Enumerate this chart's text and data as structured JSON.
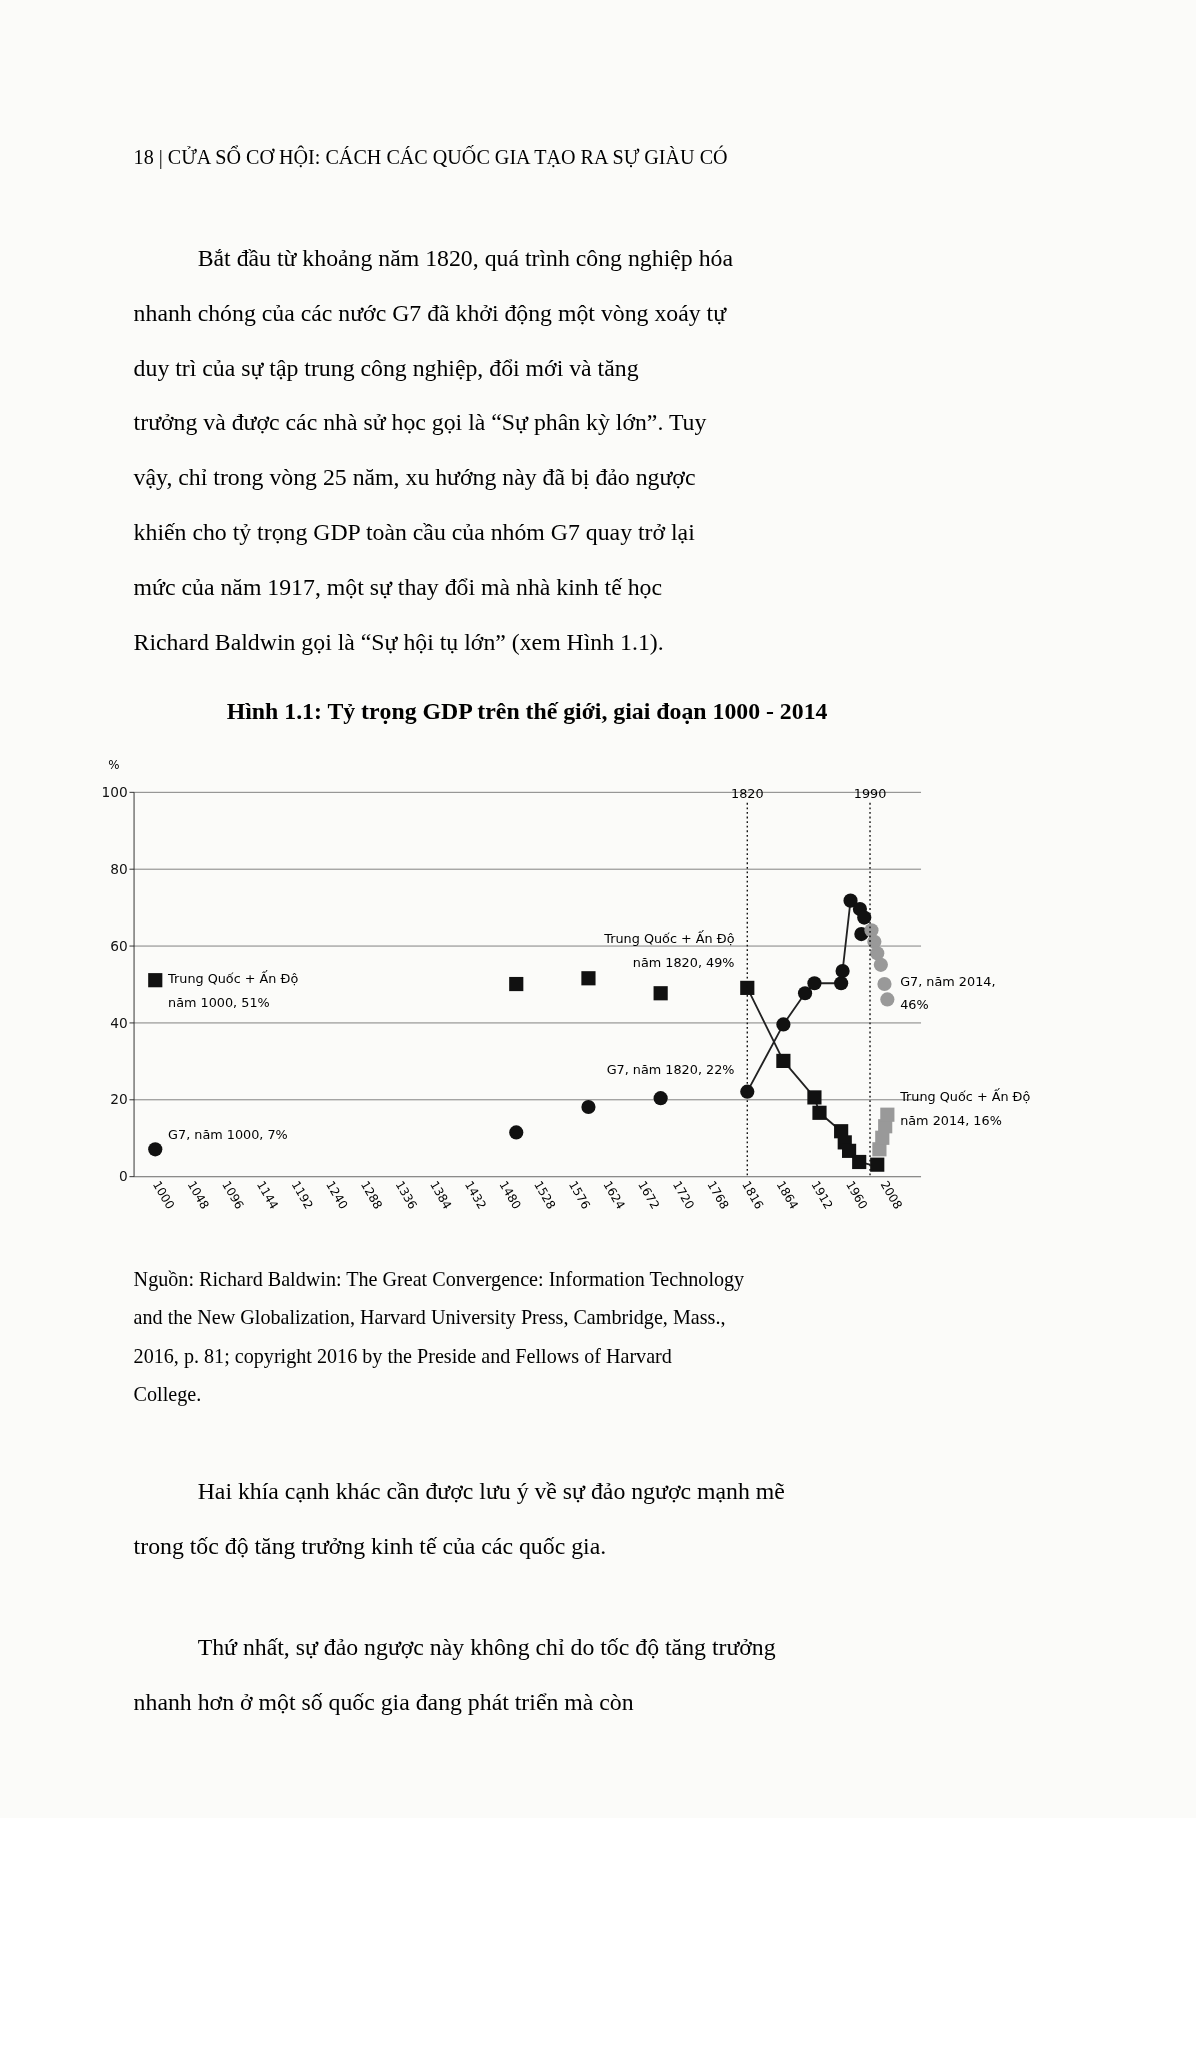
{
  "chart_data": {
    "type": "scatter",
    "title": "Hình 1.1: Tỷ trọng GDP trên thế giới, giai đoạn 1000 - 2014",
    "ylabel": "%",
    "xlim": [
      970,
      2060
    ],
    "ylim": [
      0,
      100
    ],
    "xticks": [
      1000,
      1048,
      1096,
      1144,
      1192,
      1240,
      1288,
      1336,
      1384,
      1432,
      1480,
      1528,
      1576,
      1624,
      1672,
      1720,
      1768,
      1816,
      1864,
      1912,
      1960,
      2008
    ],
    "yticks": [
      0,
      20,
      40,
      60,
      80,
      100
    ],
    "grid": "y",
    "series": [
      {
        "type": "line",
        "color": "#222222",
        "line_style": "solid",
        "marker": "none",
        "x": [
          1820,
          1870,
          1913,
          1920,
          1950,
          1961,
          1975,
          1990
        ],
        "values": [
          49,
          30,
          20.5,
          16.5,
          11.7,
          6.6,
          3.7,
          3
        ]
      },
      {
        "type": "line",
        "color": "#222222",
        "line_style": "solid",
        "marker": "none",
        "x": [
          1820,
          1870,
          1900,
          1913,
          1950,
          1952,
          1963,
          1976,
          1982
        ],
        "values": [
          22,
          39.5,
          47.6,
          50.2,
          50.2,
          53.4,
          71.7,
          69.5,
          67.3
        ]
      },
      {
        "type": "scatter",
        "color": "#111111",
        "marker": "square",
        "x": [
          1000,
          1500,
          1600,
          1700,
          1820,
          1870,
          1913,
          1920,
          1950,
          1955,
          1961,
          1970,
          1975,
          1990,
          2000
        ],
        "values": [
          51,
          50,
          51.5,
          47.6,
          49,
          30,
          20.5,
          16.5,
          11.7,
          8.8,
          6.6,
          null,
          3.7,
          null,
          3
        ]
      },
      {
        "type": "scatter",
        "color": "#111111",
        "marker": "circle",
        "x": [
          1000,
          1500,
          1600,
          1700,
          1820,
          1870,
          1900,
          1913,
          1950,
          1952,
          1963,
          1976,
          1978,
          1982
        ],
        "values": [
          7,
          11.4,
          18,
          20.3,
          22,
          39.5,
          47.6,
          50.2,
          50.2,
          53.4,
          71.7,
          69.5,
          63,
          67.3
        ]
      },
      {
        "type": "scatter",
        "color": "#999999",
        "marker": "circle",
        "x": [
          1992,
          1996,
          2000,
          2005,
          2010,
          2014
        ],
        "values": [
          64,
          61,
          58,
          55,
          50,
          46
        ]
      },
      {
        "type": "scatter",
        "color": "#999999",
        "marker": "square",
        "x": [
          2003,
          2007,
          2011,
          2014
        ],
        "values": [
          7,
          10,
          13,
          16
        ]
      }
    ],
    "ref_lines": [
      {
        "axis": "x",
        "value": 1820,
        "label": "1820",
        "line_style": "dotted"
      },
      {
        "axis": "x",
        "value": 1990,
        "label": "1990",
        "line_style": "dotted"
      }
    ],
    "annotations": [
      "18 | CỬA SỔ CƠ HỘI: CÁCH CÁC QUỐC GIA TẠO RA SỰ GIÀU CÓ",
      "Bắt đầu từ khoảng năm 1820, quá trình công nghiệp hóa nhanh chóng của các nước G7 đã khởi động một vòng xoáy tự duy trì của sự tập trung công nghiệp, đổi mới và tăng trưởng và được các nhà sử học gọi là “Sự phân kỳ lớn”. Tuy vậy, chỉ trong vòng 25 năm, xu hướng này đã bị đảo ngược khiến cho tỷ trọng GDP toàn cầu của nhóm G7 quay trở lại mức của năm 1917, một sự thay đổi mà nhà kinh tế học Richard Baldwin gọi là “Sự hội tụ lớn” (xem Hình 1.1).",
      {
        "text": "Trung Quốc + Ấn Độ\nnăm 1000, 51%",
        "x": 1000,
        "y": 51
      },
      {
        "text": "G7, năm 1000, 7%",
        "x": 1000,
        "y": 7
      },
      {
        "text": "Trung Quốc + Ấn Độ\nnăm 1820, 49%",
        "x": 1820,
        "y": 49
      },
      {
        "text": "G7, năm 1820, 22%",
        "x": 1820,
        "y": 22
      },
      {
        "text": "G7, năm 2014,\n46%",
        "x": 2014,
        "y": 46
      },
      {
        "text": "Trung Quốc + Ấn Độ\nnăm 2014, 16%",
        "x": 2014,
        "y": 16
      },
      "Nguồn: Richard Baldwin: The Great Convergence: Information Technology and the New Globalization, Harvard University Press, Cambridge, Mass., 2016, p. 81; copyright 2016 by the Preside and Fellows of Harvard College.",
      "Hai khía cạnh khác cần được lưu ý về sự đảo ngược mạnh mẽ trong tốc độ tăng trưởng kinh tế của các quốc gia.",
      "Thứ nhất, sự đảo ngược này không chỉ do tốc độ tăng trưởng nhanh hơn ở một số quốc gia đang phát triển mà còn"
    ]
  }
}
